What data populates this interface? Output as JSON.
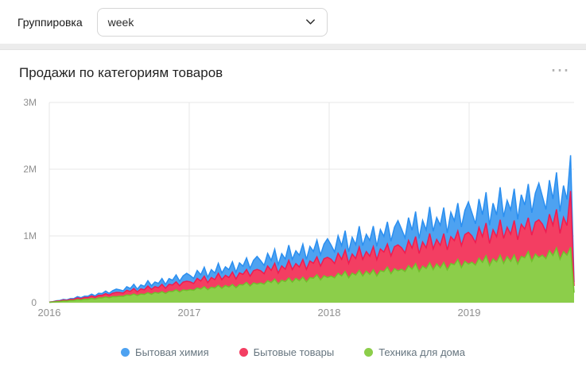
{
  "page": {
    "background_color": "#ececec"
  },
  "toolbar": {
    "grouping_label": "Группировка",
    "grouping_value": "week",
    "icons": {
      "dropdown": "chevron-down"
    }
  },
  "widget": {
    "title": "Продажи по категориям товаров",
    "icons": {
      "menu": "ellipsis-horizontal"
    },
    "menu_glyph": "⋯"
  },
  "chart_data": {
    "type": "area",
    "stacked": true,
    "title": "Продажи по категориям товаров",
    "interval": "week",
    "value_unit_multiplier": 1000,
    "ylim": [
      0,
      3000
    ],
    "y_ticks": [
      {
        "value": 0,
        "label": "0"
      },
      {
        "value": 1000,
        "label": "1M"
      },
      {
        "value": 2000,
        "label": "2M"
      },
      {
        "value": 3000,
        "label": "3M"
      }
    ],
    "x_start_year": 2016,
    "x_end_year": 2019.75,
    "x_ticks": [
      {
        "value": 2016,
        "label": "2016"
      },
      {
        "value": 2017,
        "label": "2017"
      },
      {
        "value": 2018,
        "label": "2018"
      },
      {
        "value": 2019,
        "label": "2019"
      }
    ],
    "grid": true,
    "legend_position": "bottom",
    "grid_color": "#e7e7e7",
    "tick_label_color": "#8f8f8f",
    "stack_order_bottom_to_top": [
      "Техника для дома",
      "Бытовые товары",
      "Бытовая химия"
    ],
    "series": [
      {
        "name": "Бытовая химия",
        "color": "#4da2f1",
        "stroke": "#2b8ff0",
        "values": [
          1,
          2,
          5,
          6,
          10,
          7,
          12,
          11,
          19,
          14,
          19,
          19,
          27,
          19,
          30,
          26,
          39,
          27,
          38,
          50,
          40,
          34,
          54,
          44,
          65,
          40,
          60,
          51,
          79,
          54,
          69,
          65,
          87,
          58,
          86,
          72,
          103,
          70,
          93,
          119,
          93,
          77,
          118,
          93,
          133,
          80,
          119,
          99,
          150,
          100,
          127,
          118,
          155,
          101,
          149,
          122,
          174,
          116,
          154,
          195,
          151,
          123,
          189,
          147,
          209,
          125,
          183,
          152,
          229,
          152,
          191,
          176,
          230,
          149,
          218,
          178,
          251,
          167,
          219,
          277,
          213,
          173,
          264,
          205,
          290,
          172,
          251,
          208,
          311,
          206,
          258,
          237,
          308,
          200,
          290,
          236,
          332,
          221,
          289,
          364,
          279,
          226,
          343,
          266,
          375,
          222,
          323,
          266,
          398,
          263,
          329,
          301,
          390,
          252,
          366,
          297,
          417,
          276,
          361,
          454,
          347,
          280,
          425,
          329,
          462,
          273,
          397,
          327,
          488,
          322,
          401,
          366,
          475,
          306,
          444,
          360,
          505,
          334,
          435,
          547,
          418,
          337,
          510,
          394,
          553,
          327,
          475,
          390,
          536,
          60
        ]
      },
      {
        "name": "Бытовые товары",
        "color": "#f33e62",
        "stroke": "#ee1c51",
        "values": [
          2,
          4,
          8,
          9,
          14,
          11,
          17,
          17,
          27,
          21,
          27,
          27,
          38,
          28,
          41,
          39,
          49,
          40,
          51,
          64,
          55,
          49,
          70,
          61,
          81,
          56,
          77,
          69,
          100,
          73,
          88,
          84,
          109,
          78,
          107,
          98,
          118,
          93,
          116,
          140,
          118,
          103,
          143,
          121,
          157,
          107,
          144,
          126,
          180,
          129,
          153,
          144,
          185,
          131,
          177,
          160,
          191,
          149,
          184,
          220,
          184,
          159,
          219,
          184,
          237,
          161,
          215,
          187,
          264,
          189,
          222,
          208,
          265,
          187,
          250,
          226,
          267,
          208,
          255,
          303,
          252,
          217,
          298,
          249,
          319,
          216,
          287,
          249,
          350,
          249,
          293,
          273,
          347,
          244,
          325,
          292,
          345,
          268,
          328,
          389,
          322,
          277,
          379,
          316,
          404,
          272,
          361,
          312,
          439,
          312,
          365,
          340,
          431,
          302,
          402,
          361,
          425,
          330,
          402,
          476,
          394,
          338,
          461,
          385,
          490,
          330,
          436,
          377,
          529,
          375,
          439,
          408,
          516,
          362,
          480,
          431,
          506,
          392,
          478,
          565,
          467,
          400,
          546,
          454,
          578,
          388,
          514,
          444,
          844,
          100
        ]
      },
      {
        "name": "Техника для дома",
        "color": "#8cce4a",
        "stroke": "#72bf2c",
        "values": [
          5,
          9,
          15,
          18,
          25,
          24,
          32,
          34,
          44,
          40,
          51,
          50,
          63,
          55,
          70,
          72,
          86,
          74,
          91,
          89,
          97,
          94,
          115,
          108,
          130,
          106,
          130,
          124,
          149,
          126,
          152,
          140,
          166,
          138,
          168,
          167,
          194,
          160,
          192,
          182,
          195,
          184,
          221,
          204,
          241,
          194,
          232,
          219,
          259,
          216,
          257,
          233,
          273,
          224,
          270,
          265,
          305,
          249,
          296,
          278,
          295,
          276,
          330,
          301,
          354,
          282,
          336,
          315,
          370,
          308,
          364,
          327,
          382,
          312,
          375,
          365,
          419,
          341,
          403,
          377,
          398,
          371,
          441,
          401,
          469,
          373,
          442,
          413,
          484,
          400,
          473,
          423,
          493,
          400,
          480,
          466,
          534,
          433,
          511,
          477,
          502,
          467,
          553,
          502,
          586,
          465,
          549,
          511,
          598,
          494,
          582,
          520,
          604,
          490,
          587,
          569,
          650,
          526,
          620,
          578,
          607,
          563,
          667,
          604,
          703,
          557,
          657,
          611,
          713,
          588,
          692,
          618,
          716,
          580,
          694,
          672,
          767,
          620,
          729,
          678,
          712,
          660,
          780,
          706,
          821,
          650,
          766,
          712,
          830,
          150
        ]
      }
    ]
  }
}
